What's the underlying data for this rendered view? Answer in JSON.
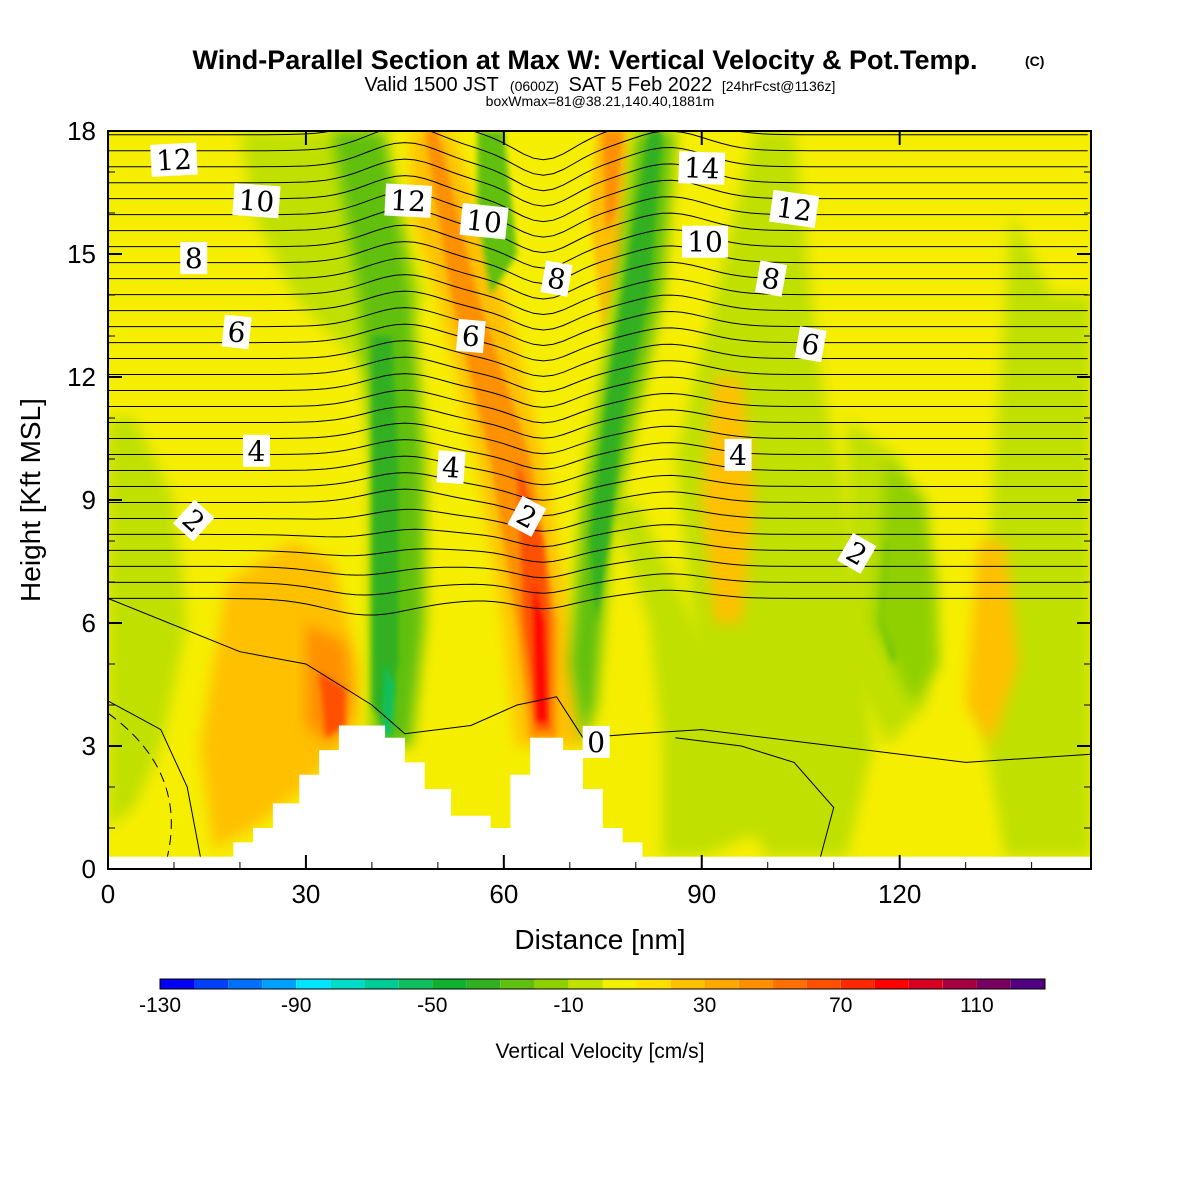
{
  "title": "Wind-Parallel Section at Max W: Vertical Velocity & Pot.Temp.",
  "copyright": "(C)",
  "subtitle": {
    "valid": "Valid 1500 JST",
    "zulu": "(0600Z)",
    "date": "SAT 5 Feb 2022",
    "forecast": "[24hrFcst@1136z]"
  },
  "box_label": "boxWmax=81@38.21,140.40,1881m",
  "colors": {
    "background": "#ffffff",
    "plot_base": "#f6ee00",
    "terrain": "#ffffff"
  },
  "chart_data": {
    "type": "heatmap",
    "title": "Wind-Parallel Section at Max W: Vertical Velocity & Pot.Temp.",
    "xlabel": "Distance [nm]",
    "ylabel": "Height [Kft MSL]",
    "xlim": [
      0,
      149
    ],
    "ylim": [
      0,
      18
    ],
    "x_ticks": [
      0,
      30,
      60,
      90,
      120
    ],
    "y_ticks": [
      0,
      3,
      6,
      9,
      12,
      15,
      18
    ],
    "fill_variable": "Vertical Velocity",
    "contour_variable": "Potential temperature",
    "contour_labels": [
      {
        "label": "12",
        "x": 10,
        "y": 17.3
      },
      {
        "label": "10",
        "x": 22.5,
        "y": 16.3
      },
      {
        "label": "12",
        "x": 45.5,
        "y": 16.3
      },
      {
        "label": "10",
        "x": 57,
        "y": 15.8
      },
      {
        "label": "14",
        "x": 90,
        "y": 17.1
      },
      {
        "label": "12",
        "x": 104,
        "y": 16.1
      },
      {
        "label": "10",
        "x": 90.5,
        "y": 15.3
      },
      {
        "label": "8",
        "x": 13,
        "y": 14.9
      },
      {
        "label": "8",
        "x": 68,
        "y": 14.4
      },
      {
        "label": "8",
        "x": 100.5,
        "y": 14.4
      },
      {
        "label": "6",
        "x": 19.5,
        "y": 13.1
      },
      {
        "label": "6",
        "x": 55,
        "y": 13.0
      },
      {
        "label": "6",
        "x": 106.5,
        "y": 12.8
      },
      {
        "label": "4",
        "x": 22.5,
        "y": 10.2
      },
      {
        "label": "4",
        "x": 52,
        "y": 9.8
      },
      {
        "label": "4",
        "x": 95.5,
        "y": 10.1
      },
      {
        "label": "2",
        "x": 13,
        "y": 8.5
      },
      {
        "label": "2",
        "x": 63.5,
        "y": 8.6
      },
      {
        "label": "2",
        "x": 113.5,
        "y": 7.7
      },
      {
        "label": "0",
        "x": 74,
        "y": 3.1
      }
    ],
    "terrain_profile": [
      [
        19,
        0.3
      ],
      [
        19,
        0.65
      ],
      [
        22,
        0.65
      ],
      [
        22,
        1.0
      ],
      [
        25,
        1.0
      ],
      [
        25,
        1.6
      ],
      [
        29,
        1.6
      ],
      [
        29,
        2.3
      ],
      [
        32,
        2.3
      ],
      [
        32,
        2.9
      ],
      [
        35,
        2.9
      ],
      [
        35,
        3.5
      ],
      [
        42,
        3.5
      ],
      [
        42,
        3.2
      ],
      [
        45,
        3.2
      ],
      [
        45,
        2.6
      ],
      [
        48,
        2.6
      ],
      [
        48,
        1.95
      ],
      [
        52,
        1.95
      ],
      [
        52,
        1.3
      ],
      [
        58,
        1.3
      ],
      [
        58,
        1.0
      ],
      [
        61,
        1.0
      ],
      [
        61,
        2.3
      ],
      [
        64,
        2.3
      ],
      [
        64,
        3.2
      ],
      [
        69,
        3.2
      ],
      [
        69,
        2.9
      ],
      [
        72,
        2.9
      ],
      [
        72,
        1.95
      ],
      [
        75,
        1.95
      ],
      [
        75,
        1.0
      ],
      [
        78,
        1.0
      ],
      [
        78,
        0.65
      ],
      [
        81,
        0.65
      ],
      [
        81,
        0.3
      ]
    ]
  },
  "colorbar": {
    "label": "Vertical Velocity [cm/s]",
    "tick_labels": [
      "-130",
      "-90",
      "-50",
      "-10",
      "30",
      "70",
      "110"
    ],
    "boundaries": [
      -130,
      -120,
      -110,
      -100,
      -90,
      -80,
      -70,
      -60,
      -50,
      -40,
      -30,
      -20,
      -10,
      0,
      10,
      20,
      30,
      40,
      50,
      60,
      70,
      80,
      90,
      100,
      110,
      120
    ],
    "colors": [
      "#0000f5",
      "#0040f8",
      "#0070fb",
      "#00a0ff",
      "#00e5ff",
      "#00dcc8",
      "#00cc96",
      "#10c060",
      "#10b030",
      "#30b020",
      "#60c010",
      "#90d000",
      "#c0e000",
      "#f0f000",
      "#ffe000",
      "#ffc000",
      "#ffa800",
      "#ff9000",
      "#ff7000",
      "#ff5000",
      "#ff2800",
      "#ff0000",
      "#d80020",
      "#a80040",
      "#780060",
      "#500080"
    ]
  }
}
